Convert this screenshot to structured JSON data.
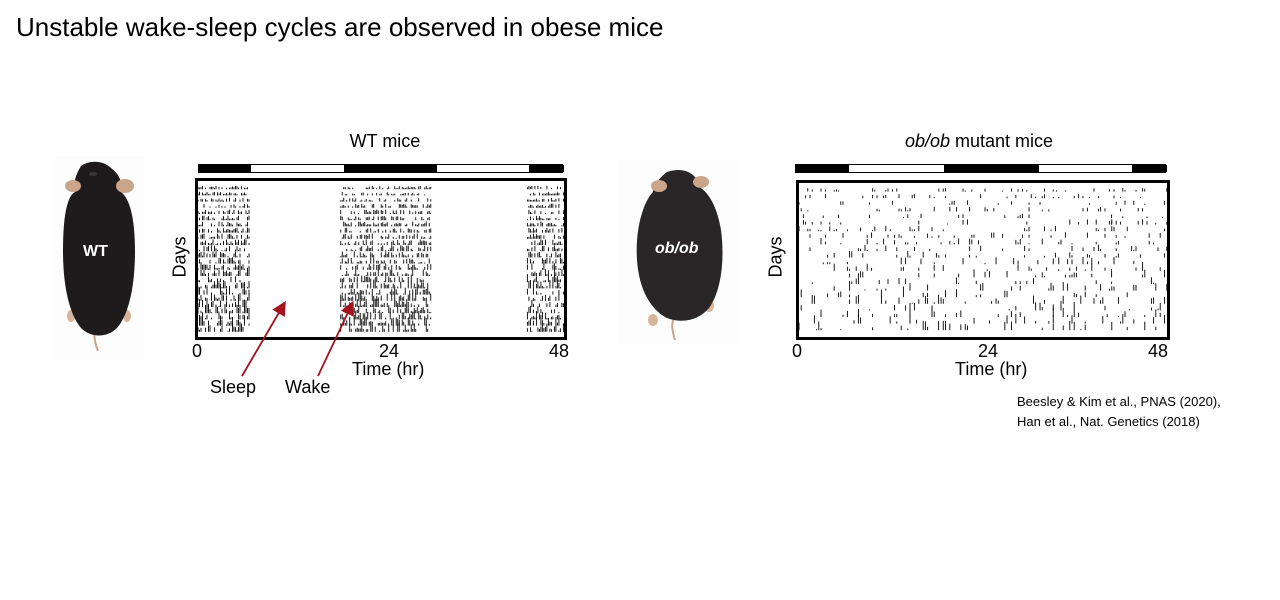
{
  "title": "Unstable wake-sleep cycles are observed in obese mice",
  "wt_panel": {
    "title": "WT mice",
    "mouse_label": "WT",
    "y_label": "Days",
    "x_label": "Time (hr)",
    "x_ticks": [
      "0",
      "24",
      "48"
    ],
    "callouts": {
      "sleep": "Sleep",
      "wake": "Wake"
    }
  },
  "ob_panel": {
    "title_italic": "ob/ob",
    "title_rest": " mutant mice",
    "mouse_label": "ob/ob",
    "y_label": "Days",
    "x_label": "Time (hr)",
    "x_ticks": [
      "0",
      "24",
      "48"
    ]
  },
  "citations": [
    "Beesley & Kim et al., PNAS (2020),",
    "Han et al., Nat. Genetics (2018)"
  ],
  "colors": {
    "arrow": "#a3131e",
    "mouse_fur": "#1f1b1c",
    "ear": "#caa58a"
  }
}
